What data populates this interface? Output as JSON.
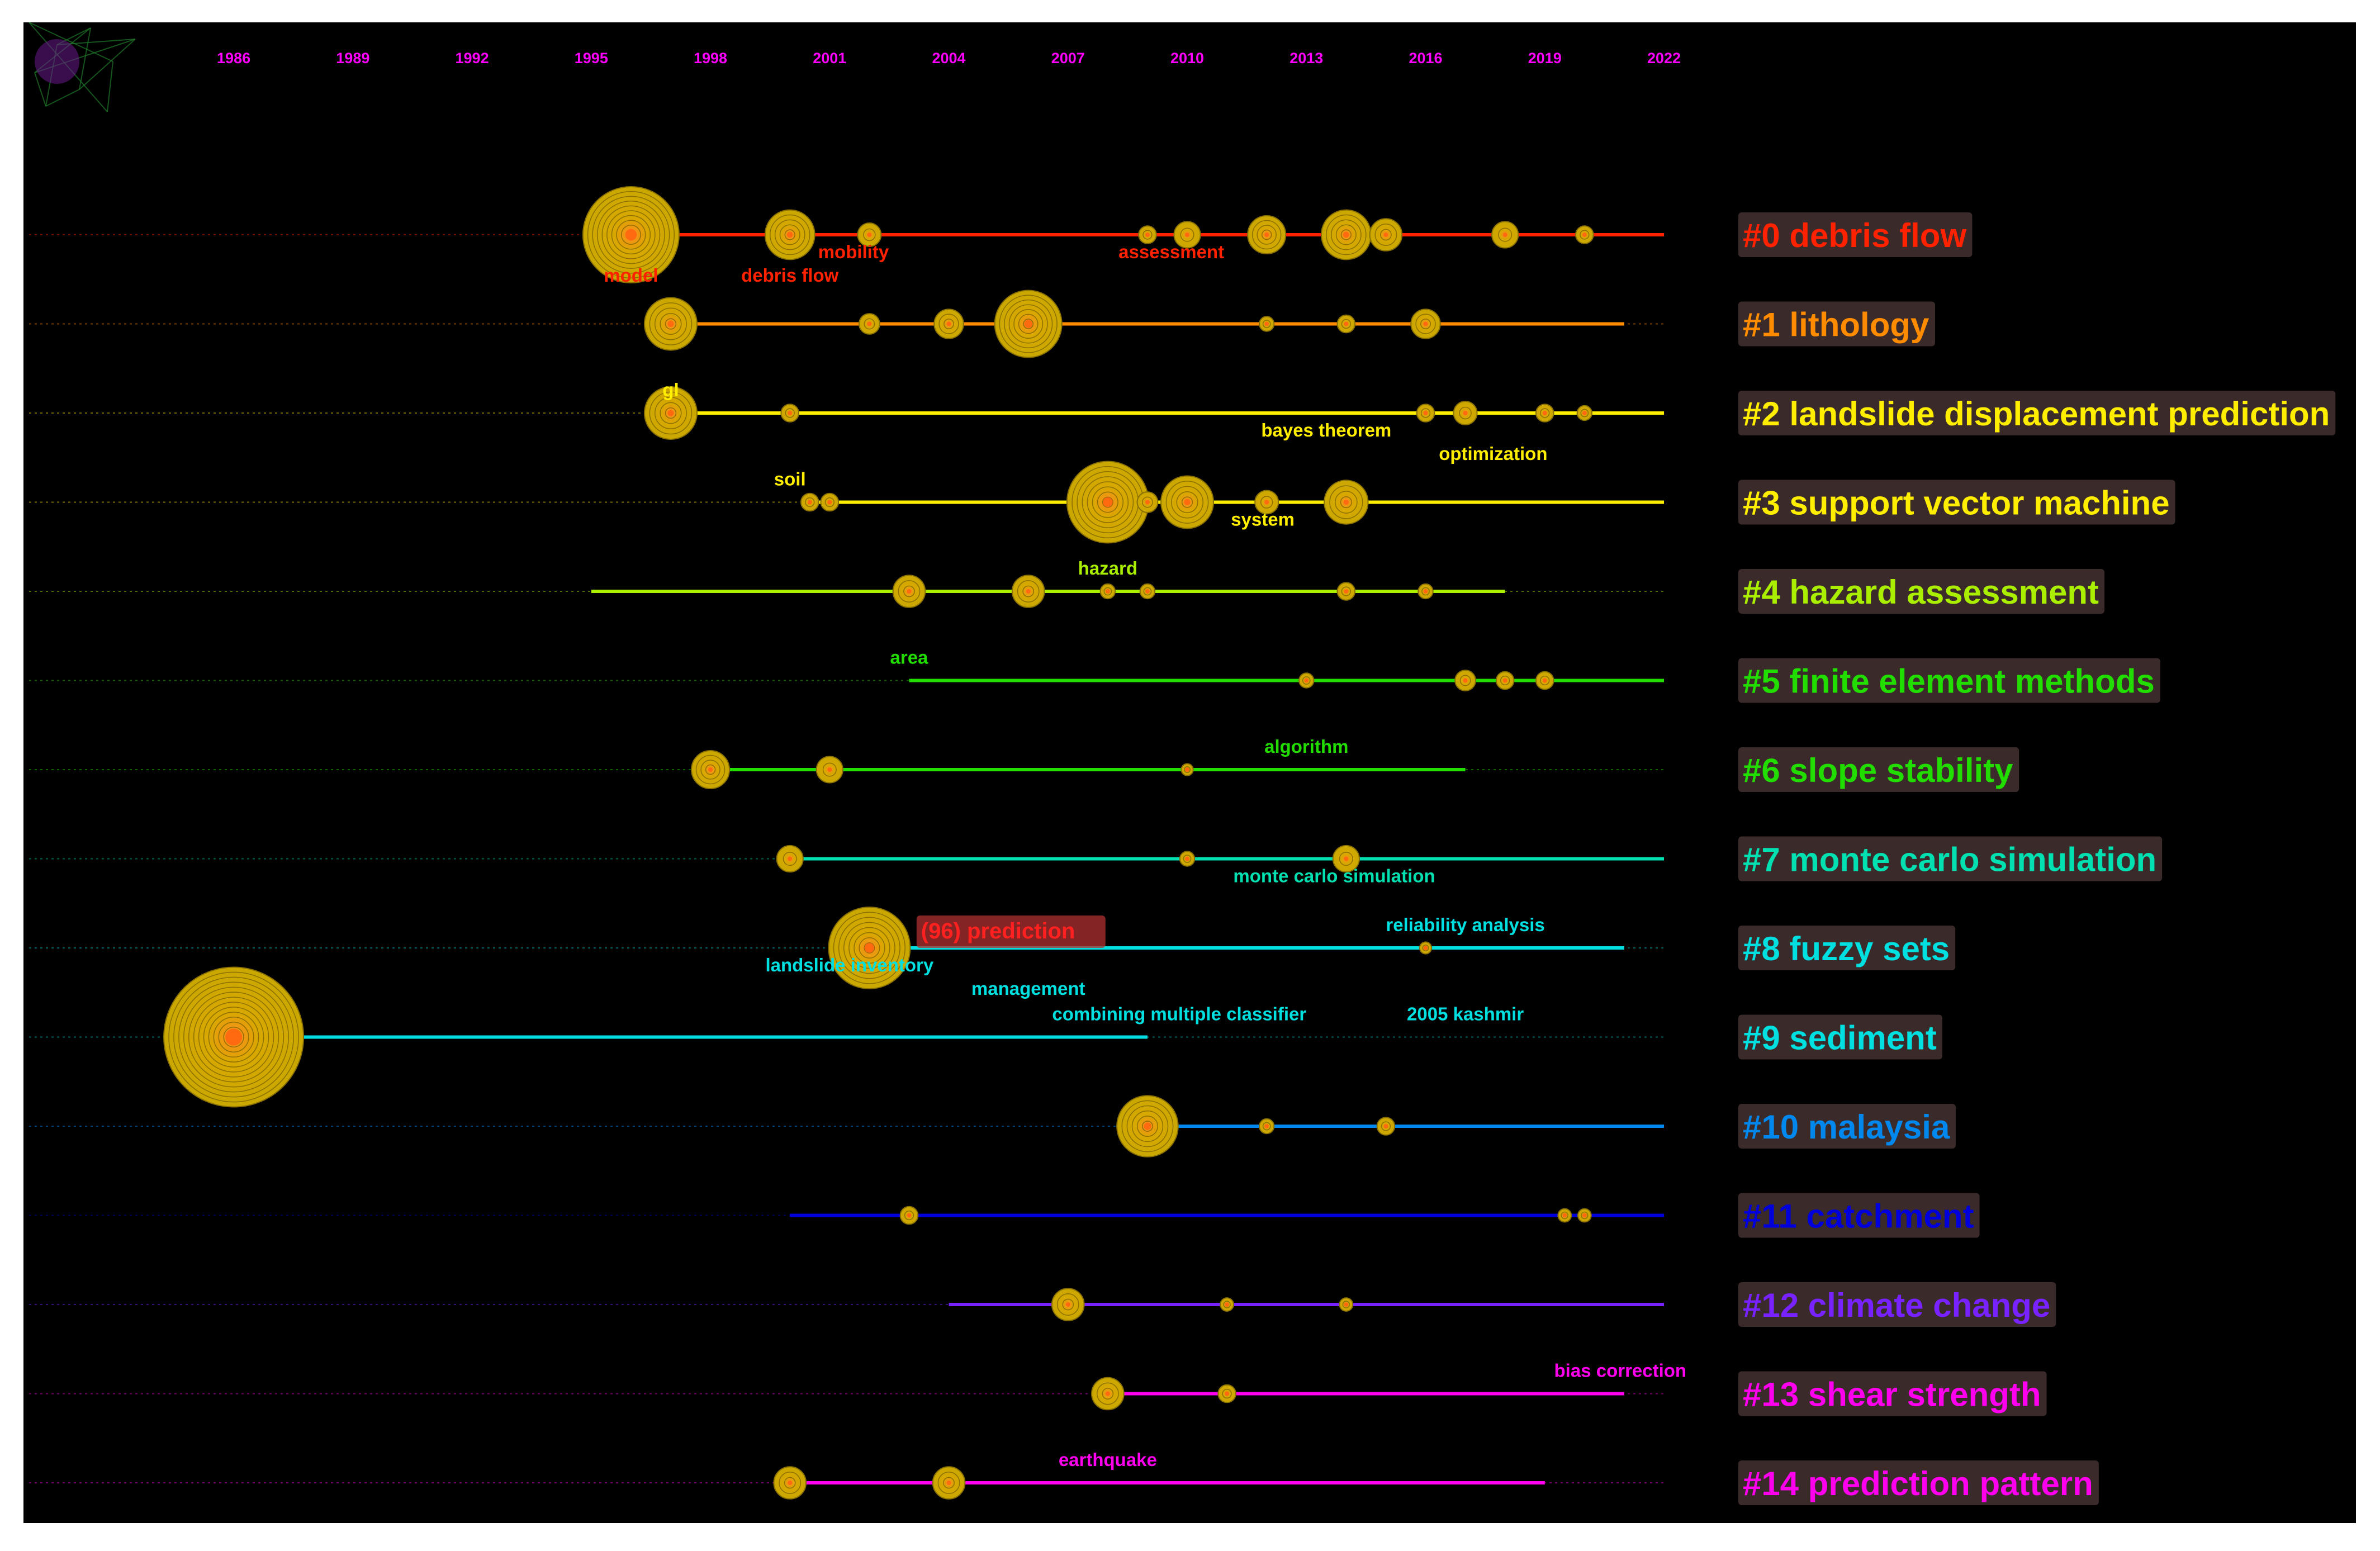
{
  "chart_data": {
    "type": "timeline",
    "x_range": [
      1985,
      2022
    ],
    "years": [
      "1986",
      "1989",
      "1992",
      "1995",
      "1998",
      "2001",
      "2004",
      "2007",
      "2010",
      "2013",
      "2016",
      "2019",
      "2022"
    ],
    "year_color": "#ff00ff",
    "clusters": [
      {
        "id": "#0",
        "label": "#0 debris flow",
        "color": "#ff2200",
        "start": 1995,
        "end": 2022,
        "nodes": [
          {
            "year": 1996,
            "size": 3
          },
          {
            "year": 2000,
            "size": 1.4
          },
          {
            "year": 2002,
            "size": 0.5
          },
          {
            "year": 2009,
            "size": 0.3
          },
          {
            "year": 2010,
            "size": 0.6
          },
          {
            "year": 2012,
            "size": 1
          },
          {
            "year": 2014,
            "size": 1.4
          },
          {
            "year": 2015,
            "size": 0.8
          },
          {
            "year": 2018,
            "size": 0.6
          },
          {
            "year": 2020,
            "size": 0.3
          }
        ],
        "terms": [
          {
            "text": "mobility",
            "year": 2001.6,
            "pos": "below"
          },
          {
            "text": "assessment",
            "year": 2009.6,
            "pos": "below"
          },
          {
            "text": "model",
            "year": 1996,
            "pos": "below2"
          },
          {
            "text": "debris flow",
            "year": 2000,
            "pos": "below2"
          }
        ]
      },
      {
        "id": "#1",
        "label": "#1 lithology",
        "color": "#ff8c00",
        "start": 1996.5,
        "end": 2021,
        "nodes": [
          {
            "year": 1997,
            "size": 1.5
          },
          {
            "year": 2002,
            "size": 0.4
          },
          {
            "year": 2004,
            "size": 0.7
          },
          {
            "year": 2006,
            "size": 2
          },
          {
            "year": 2012,
            "size": 0.2
          },
          {
            "year": 2014,
            "size": 0.3
          },
          {
            "year": 2016,
            "size": 0.7
          }
        ],
        "terms": []
      },
      {
        "id": "#2",
        "label": "#2 landslide displacement prediction",
        "color": "#ffee00",
        "start": 1996.5,
        "end": 2022,
        "nodes": [
          {
            "year": 1997,
            "size": 1.5
          },
          {
            "year": 2000,
            "size": 0.3
          },
          {
            "year": 2016,
            "size": 0.3
          },
          {
            "year": 2017,
            "size": 0.5
          },
          {
            "year": 2019,
            "size": 0.3
          },
          {
            "year": 2020,
            "size": 0.2
          }
        ],
        "terms": [
          {
            "text": "gl",
            "year": 1997,
            "pos": "above"
          },
          {
            "text": "bayes theorem",
            "year": 2013.5,
            "pos": "below"
          },
          {
            "text": "optimization",
            "year": 2017.7,
            "pos": "below2"
          }
        ]
      },
      {
        "id": "#3",
        "label": "#3 support vector machine",
        "color": "#ffee00",
        "start": 2000.5,
        "end": 2022,
        "nodes": [
          {
            "year": 2000.5,
            "size": 0.3
          },
          {
            "year": 2001,
            "size": 0.3
          },
          {
            "year": 2008,
            "size": 2.5
          },
          {
            "year": 2009,
            "size": 0.4
          },
          {
            "year": 2010,
            "size": 1.5
          },
          {
            "year": 2012,
            "size": 0.5
          },
          {
            "year": 2014,
            "size": 1.2
          }
        ],
        "terms": [
          {
            "text": "soil",
            "year": 2000,
            "pos": "above"
          },
          {
            "text": "system",
            "year": 2011.9,
            "pos": "below"
          }
        ]
      },
      {
        "id": "#4",
        "label": "#4 hazard assessment",
        "color": "#aaee00",
        "start": 1995,
        "end": 2018,
        "nodes": [
          {
            "year": 2003,
            "size": 0.8
          },
          {
            "year": 2006,
            "size": 0.8
          },
          {
            "year": 2008,
            "size": 0.2
          },
          {
            "year": 2009,
            "size": 0.2
          },
          {
            "year": 2014,
            "size": 0.3
          },
          {
            "year": 2016,
            "size": 0.2
          }
        ],
        "terms": [
          {
            "text": "hazard",
            "year": 2008,
            "pos": "above"
          }
        ]
      },
      {
        "id": "#5",
        "label": "#5 finite element methods",
        "color": "#22dd00",
        "start": 2003,
        "end": 2022,
        "nodes": [
          {
            "year": 2013,
            "size": 0.2
          },
          {
            "year": 2017,
            "size": 0.4
          },
          {
            "year": 2018,
            "size": 0.3
          },
          {
            "year": 2019,
            "size": 0.3
          }
        ],
        "terms": [
          {
            "text": "area",
            "year": 2003,
            "pos": "above"
          }
        ]
      },
      {
        "id": "#6",
        "label": "#6 slope stability",
        "color": "#22dd00",
        "start": 1998,
        "end": 2017,
        "nodes": [
          {
            "year": 1998,
            "size": 1
          },
          {
            "year": 2001,
            "size": 0.6
          },
          {
            "year": 2010,
            "size": 0.1
          }
        ],
        "terms": [
          {
            "text": "algorithm",
            "year": 2013,
            "pos": "above"
          }
        ]
      },
      {
        "id": "#7",
        "label": "#7 monte carlo simulation",
        "color": "#00e0b0",
        "start": 2000,
        "end": 2022,
        "nodes": [
          {
            "year": 2000,
            "size": 0.6
          },
          {
            "year": 2010,
            "size": 0.2
          },
          {
            "year": 2014,
            "size": 0.6
          }
        ],
        "terms": [
          {
            "text": "monte carlo simulation",
            "year": 2013.7,
            "pos": "below"
          }
        ]
      },
      {
        "id": "#8",
        "label": "#8 fuzzy sets",
        "color": "#00e0e0",
        "start": 2002,
        "end": 2021,
        "nodes": [
          {
            "year": 2002,
            "size": 2.5
          },
          {
            "year": 2016,
            "size": 0.1
          }
        ],
        "terms": [
          {
            "text": "reliability analysis",
            "year": 2017,
            "pos": "above"
          },
          {
            "text": "landslide inventory",
            "year": 2001.5,
            "pos": "below"
          },
          {
            "text": "management",
            "year": 2006,
            "pos": "below2"
          }
        ],
        "highlight": "(96) prediction"
      },
      {
        "id": "#9",
        "label": "#9 sediment",
        "color": "#00e0e0",
        "start": 1986,
        "end": 2009,
        "nodes": [
          {
            "year": 1986,
            "size": 4.5
          }
        ],
        "terms": [
          {
            "text": "combining multiple classifier",
            "year": 2009.8,
            "pos": "above"
          },
          {
            "text": "2005 kashmir",
            "year": 2017,
            "pos": "above"
          }
        ]
      },
      {
        "id": "#10",
        "label": "#10 malaysia",
        "color": "#0088ee",
        "start": 2009,
        "end": 2022,
        "nodes": [
          {
            "year": 2009,
            "size": 1.8
          },
          {
            "year": 2012,
            "size": 0.2
          },
          {
            "year": 2015,
            "size": 0.3
          }
        ],
        "terms": []
      },
      {
        "id": "#11",
        "label": "#11 catchment",
        "color": "#0000dd",
        "start": 2000,
        "end": 2022,
        "nodes": [
          {
            "year": 2003,
            "size": 0.3
          },
          {
            "year": 2019.5,
            "size": 0.15
          },
          {
            "year": 2020,
            "size": 0.15
          }
        ],
        "terms": []
      },
      {
        "id": "#12",
        "label": "#12 climate change",
        "color": "#7722ff",
        "start": 2004,
        "end": 2022,
        "nodes": [
          {
            "year": 2007,
            "size": 0.8
          },
          {
            "year": 2011,
            "size": 0.15
          },
          {
            "year": 2014,
            "size": 0.15
          }
        ],
        "terms": []
      },
      {
        "id": "#13",
        "label": "#13 shear strength",
        "color": "#ff00ee",
        "start": 2008,
        "end": 2021,
        "nodes": [
          {
            "year": 2008,
            "size": 0.8
          },
          {
            "year": 2011,
            "size": 0.3
          }
        ],
        "terms": [
          {
            "text": "bias correction",
            "year": 2020.9,
            "pos": "above"
          }
        ]
      },
      {
        "id": "#14",
        "label": "#14 prediction pattern",
        "color": "#ff00ee",
        "start": 2000,
        "end": 2019,
        "nodes": [
          {
            "year": 2000,
            "size": 0.8
          },
          {
            "year": 2004,
            "size": 0.8
          }
        ],
        "terms": [
          {
            "text": "earthquake",
            "year": 2008,
            "pos": "above"
          }
        ]
      }
    ]
  }
}
